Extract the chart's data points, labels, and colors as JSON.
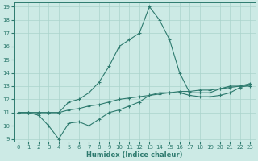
{
  "xlabel": "Humidex (Indice chaleur)",
  "background_color": "#cceae5",
  "grid_color": "#aad4cc",
  "line_color": "#2d7a6e",
  "xlim": [
    -0.5,
    23.5
  ],
  "ylim": [
    8.8,
    19.3
  ],
  "yticks": [
    9,
    10,
    11,
    12,
    13,
    14,
    15,
    16,
    17,
    18,
    19
  ],
  "xticks": [
    0,
    1,
    2,
    3,
    4,
    5,
    6,
    7,
    8,
    9,
    10,
    11,
    12,
    13,
    14,
    15,
    16,
    17,
    18,
    19,
    20,
    21,
    22,
    23
  ],
  "curve1_x": [
    0,
    1,
    2,
    3,
    4,
    5,
    6,
    7,
    8,
    9,
    10,
    11,
    12,
    13,
    14,
    15,
    16,
    17,
    18,
    19,
    20,
    21,
    22,
    23
  ],
  "curve1_y": [
    11,
    11,
    11,
    11,
    11,
    11.2,
    11.3,
    11.5,
    11.6,
    11.8,
    12.0,
    12.1,
    12.2,
    12.3,
    12.4,
    12.5,
    12.6,
    12.6,
    12.7,
    12.7,
    12.8,
    12.9,
    13.0,
    13.0
  ],
  "curve2_x": [
    0,
    1,
    2,
    3,
    4,
    5,
    6,
    7,
    8,
    9,
    10,
    11,
    12,
    13,
    14,
    15,
    16,
    17,
    18,
    19,
    20,
    21,
    22,
    23
  ],
  "curve2_y": [
    11,
    11,
    10.8,
    10,
    9,
    10.2,
    10.3,
    10,
    10.5,
    11,
    11.2,
    11.5,
    11.8,
    12.3,
    12.5,
    12.5,
    12.5,
    12.3,
    12.2,
    12.2,
    12.3,
    12.5,
    12.9,
    13.1
  ],
  "curve3_x": [
    0,
    1,
    2,
    3,
    4,
    5,
    6,
    7,
    8,
    9,
    10,
    11,
    12,
    13,
    14,
    15,
    16,
    17,
    18,
    19,
    20,
    21,
    22,
    23
  ],
  "curve3_y": [
    11,
    11,
    11,
    11,
    11,
    11.8,
    12.0,
    12.5,
    13.3,
    14.5,
    16,
    16.5,
    17,
    19,
    18,
    16.5,
    14,
    12.5,
    12.5,
    12.5,
    12.8,
    13,
    13,
    13.2
  ]
}
